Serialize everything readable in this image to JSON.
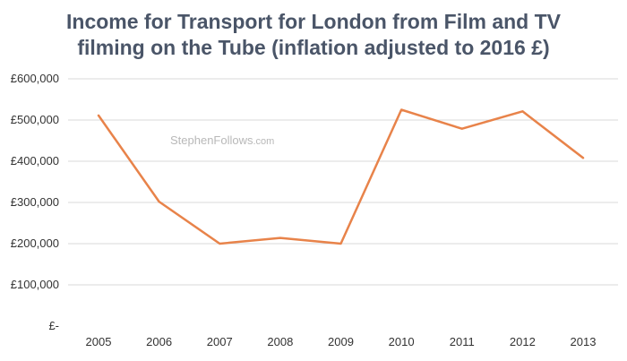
{
  "chart_data": {
    "type": "line",
    "title_lines": [
      "Income for Transport for London from Film and TV",
      "filming on the Tube (inflation adjusted to 2016 £)"
    ],
    "categories": [
      "2005",
      "2006",
      "2007",
      "2008",
      "2009",
      "2010",
      "2011",
      "2012",
      "2013"
    ],
    "series": [
      {
        "name": "Income",
        "values": [
          511000,
          302000,
          200000,
          214000,
          200000,
          525000,
          479000,
          521000,
          408000
        ],
        "color": "#e8834a"
      }
    ],
    "ylim": [
      0,
      600000
    ],
    "yticks": [
      0,
      100000,
      200000,
      300000,
      400000,
      500000,
      600000
    ],
    "ytick_labels": [
      "£-",
      "£100,000",
      "£200,000",
      "£300,000",
      "£400,000",
      "£500,000",
      "£600,000"
    ],
    "xlabel": "",
    "ylabel": "",
    "grid": true,
    "watermark": {
      "main": "StephenFollows",
      "suffix": ".com"
    }
  }
}
